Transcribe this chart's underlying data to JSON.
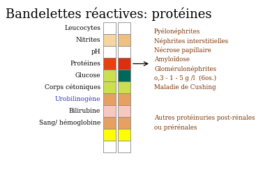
{
  "title": "Bandelettes réactives: protéines",
  "title_fontsize": 13,
  "background_color": "#ffffff",
  "labels": [
    "Leucocytes",
    "Nitrites",
    "pH",
    "Protéines",
    "Glucose",
    "Corps cétoniques",
    "Urobilinogène",
    "Bilirubine",
    "Sang/ hémoglobine"
  ],
  "col1_colors": [
    "#f5d5a0",
    "#ffffff",
    "#e84010",
    "#ccdf50",
    "#ccdf50",
    "#e8a060",
    "#f8c8c0",
    "#e8a060",
    "#ffff00"
  ],
  "col2_colors": [
    "#f0c080",
    "#ffffff",
    "#d83010",
    "#006858",
    "#ccdf50",
    "#e8a060",
    "#f8c8c0",
    "#e8a060",
    "#ffff00"
  ],
  "right_text_upper": "Pyélonéphrites\nNéphrites interstitielles\nNécrose papillaire\nAmyloïdose\nGlomérulonéphrites\no,3 - 1 - 5 g /l  (6os.)\nMaladie de Cushing",
  "right_text_lower": "Autres protéinuries post-rénales\nou prérénales",
  "arrow_row_idx": 3,
  "label_color": "#000000",
  "label_color_special": "#3030bb",
  "special_label_indices": [
    6
  ],
  "right_text_color": "#7B3000"
}
